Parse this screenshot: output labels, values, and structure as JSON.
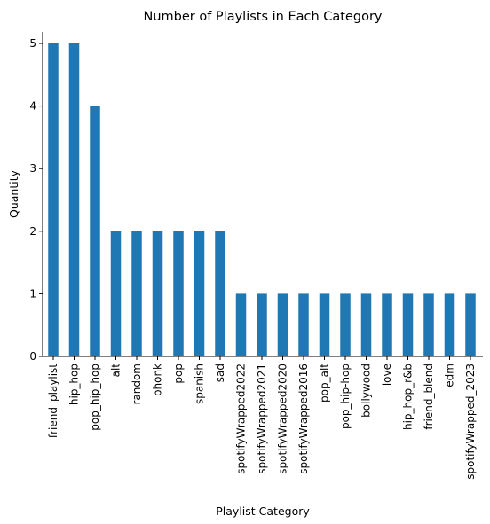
{
  "chart_data": {
    "type": "bar",
    "title": "Number of Playlists in Each Category",
    "xlabel": "Playlist Category",
    "ylabel": "Quantity",
    "ylim": [
      0,
      5
    ],
    "yticks": [
      0,
      1,
      2,
      3,
      4,
      5
    ],
    "grid": false,
    "bar_color": "#1f77b4",
    "categories": [
      "friend_playlist",
      "hip_hop",
      "pop_hip_hop",
      "alt",
      "random",
      "phonk",
      "pop",
      "spanish",
      "sad",
      "spotifyWrapped2022",
      "spotifyWrapped2021",
      "spotifyWrapped2020",
      "spotifyWrapped2016",
      "pop_alt",
      "pop_hip-hop",
      "bollywood",
      "love",
      "hip_hop_r&b",
      "friend_blend",
      "edm",
      "spotifyWrapped_2023"
    ],
    "values": [
      5,
      5,
      4,
      2,
      2,
      2,
      2,
      2,
      2,
      1,
      1,
      1,
      1,
      1,
      1,
      1,
      1,
      1,
      1,
      1,
      1
    ]
  }
}
